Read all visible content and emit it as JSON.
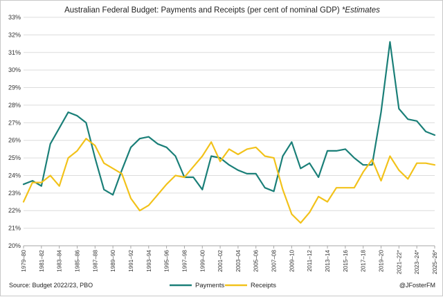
{
  "chart_data": {
    "type": "line",
    "title": "Australian Federal Budget: Payments and Receipts (per cent of nominal GDP)",
    "title_note": "*Estimates",
    "xlabel": "",
    "ylabel": "",
    "ylim": [
      20,
      33
    ],
    "ytick_labels": [
      "20%",
      "21%",
      "22%",
      "23%",
      "24%",
      "25%",
      "26%",
      "27%",
      "28%",
      "29%",
      "30%",
      "31%",
      "32%",
      "33%"
    ],
    "grid": true,
    "legend_position": "bottom-center",
    "x": [
      "1979–80",
      "1980–81",
      "1981–82",
      "1982–83",
      "1983–84",
      "1984–85",
      "1985–86",
      "1986–87",
      "1987–88",
      "1988–89",
      "1989–90",
      "1990–91",
      "1991–92",
      "1992–93",
      "1993–94",
      "1994–95",
      "1995–96",
      "1996–97",
      "1997–98",
      "1998–99",
      "1999–00",
      "2000–01",
      "2001–02",
      "2002–03",
      "2003–04",
      "2004–05",
      "2005–06",
      "2006–07",
      "2007–08",
      "2008–09",
      "2009–10",
      "2010–11",
      "2011–12",
      "2012–13",
      "2013–14",
      "2014–15",
      "2015–16",
      "2016–17",
      "2017–18",
      "2018–19",
      "2019–20",
      "2020–21",
      "2021–22*",
      "2022–23*",
      "2023–24*",
      "2024–25*",
      "2025–26*"
    ],
    "xtick_labels": [
      "1979–80",
      "1981–82",
      "1983–84",
      "1985–86",
      "1987–88",
      "1989–90",
      "1991–92",
      "1993–94",
      "1995–96",
      "1997–98",
      "1999–00",
      "2001–02",
      "2003–04",
      "2005–06",
      "2007–08",
      "2009–10",
      "2011–12",
      "2013–14",
      "2015–16",
      "2017–18",
      "2019–20",
      "2021–22*",
      "2023–24*",
      "2025–26*"
    ],
    "series": [
      {
        "name": "Payments",
        "color": "#1a7f78",
        "values": [
          23.5,
          23.7,
          23.4,
          25.8,
          26.7,
          27.6,
          27.4,
          27.0,
          25.0,
          23.2,
          22.9,
          24.3,
          25.6,
          26.1,
          26.2,
          25.8,
          25.6,
          25.1,
          23.9,
          23.9,
          23.2,
          25.1,
          25.0,
          24.6,
          24.3,
          24.1,
          24.1,
          23.3,
          23.1,
          25.1,
          25.9,
          24.4,
          24.7,
          23.9,
          25.4,
          25.4,
          25.5,
          25.0,
          24.6,
          24.6,
          27.6,
          31.6,
          27.8,
          27.2,
          27.1,
          26.5,
          26.3
        ]
      },
      {
        "name": "Receipts",
        "color": "#f2c21a",
        "values": [
          22.5,
          23.6,
          23.6,
          24.0,
          23.4,
          25.0,
          25.4,
          26.1,
          25.7,
          24.7,
          24.4,
          24.1,
          22.7,
          22.0,
          22.3,
          22.9,
          23.5,
          24.0,
          23.9,
          24.5,
          25.1,
          25.9,
          24.8,
          25.5,
          25.2,
          25.5,
          25.6,
          25.1,
          25.0,
          23.2,
          21.8,
          21.3,
          21.9,
          22.8,
          22.5,
          23.3,
          23.3,
          23.3,
          24.2,
          24.9,
          23.7,
          25.1,
          24.3,
          23.8,
          24.7,
          24.7,
          24.6
        ]
      }
    ]
  },
  "footer": {
    "source": "Source: Budget 2022/23, PBO",
    "credit": "@JFosterFM"
  }
}
